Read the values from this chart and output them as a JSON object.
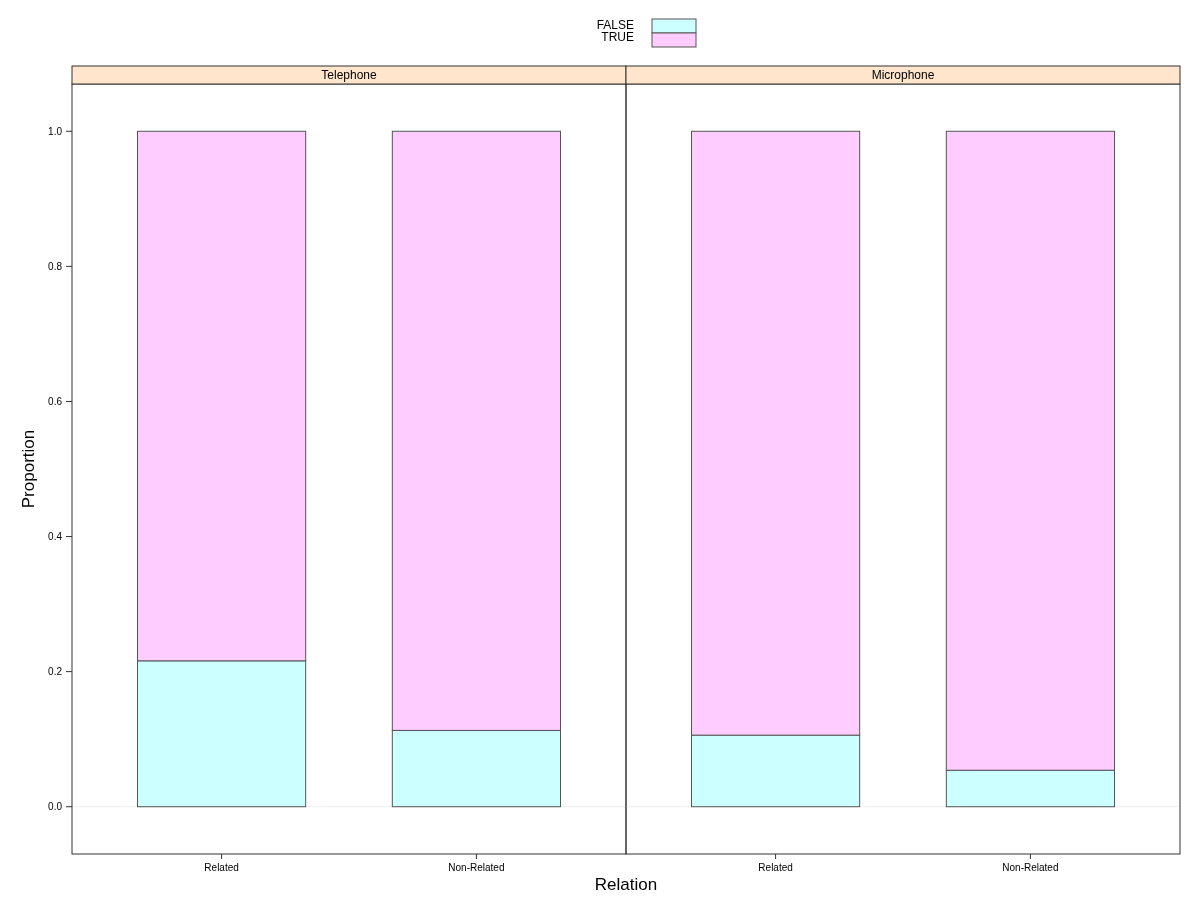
{
  "chart_data": [
    {
      "type": "bar",
      "title": "Telephone",
      "xlabel": "Relation",
      "ylabel": "Proportion",
      "stacked": true,
      "legend": "top",
      "categories": [
        "Related",
        "Non-Related"
      ],
      "series": [
        {
          "name": "FALSE",
          "color": "#ccffff",
          "values": [
            0.216,
            0.113
          ]
        },
        {
          "name": "TRUE",
          "color": "#ffccff",
          "values": [
            0.784,
            0.887
          ]
        }
      ],
      "ylim": [
        -0.07,
        1.07
      ],
      "yticks": [
        {
          "value": 0,
          "label": "0.0"
        },
        {
          "value": 0.2,
          "label": "0.2"
        },
        {
          "value": 0.4,
          "label": "0.4"
        },
        {
          "value": 0.6,
          "label": "0.6"
        },
        {
          "value": 0.8,
          "label": "0.8"
        },
        {
          "value": 1,
          "label": "1.0"
        }
      ],
      "ref_lines": [
        {
          "axis": "y",
          "value": 0,
          "color": "#eeeeee"
        }
      ]
    },
    {
      "type": "bar",
      "title": "Microphone",
      "stacked": true,
      "categories": [
        "Related",
        "Non-Related"
      ],
      "tick_labels": "x",
      "series": [
        {
          "color": "#ccffff",
          "values": [
            0.106,
            0.054
          ]
        },
        {
          "color": "#ffccff",
          "values": [
            0.894,
            0.946
          ]
        }
      ],
      "ylim": [
        -0.07,
        1.07
      ],
      "ref_lines": [
        {
          "axis": "y",
          "value": 0,
          "color": "#eeeeee"
        }
      ]
    }
  ]
}
